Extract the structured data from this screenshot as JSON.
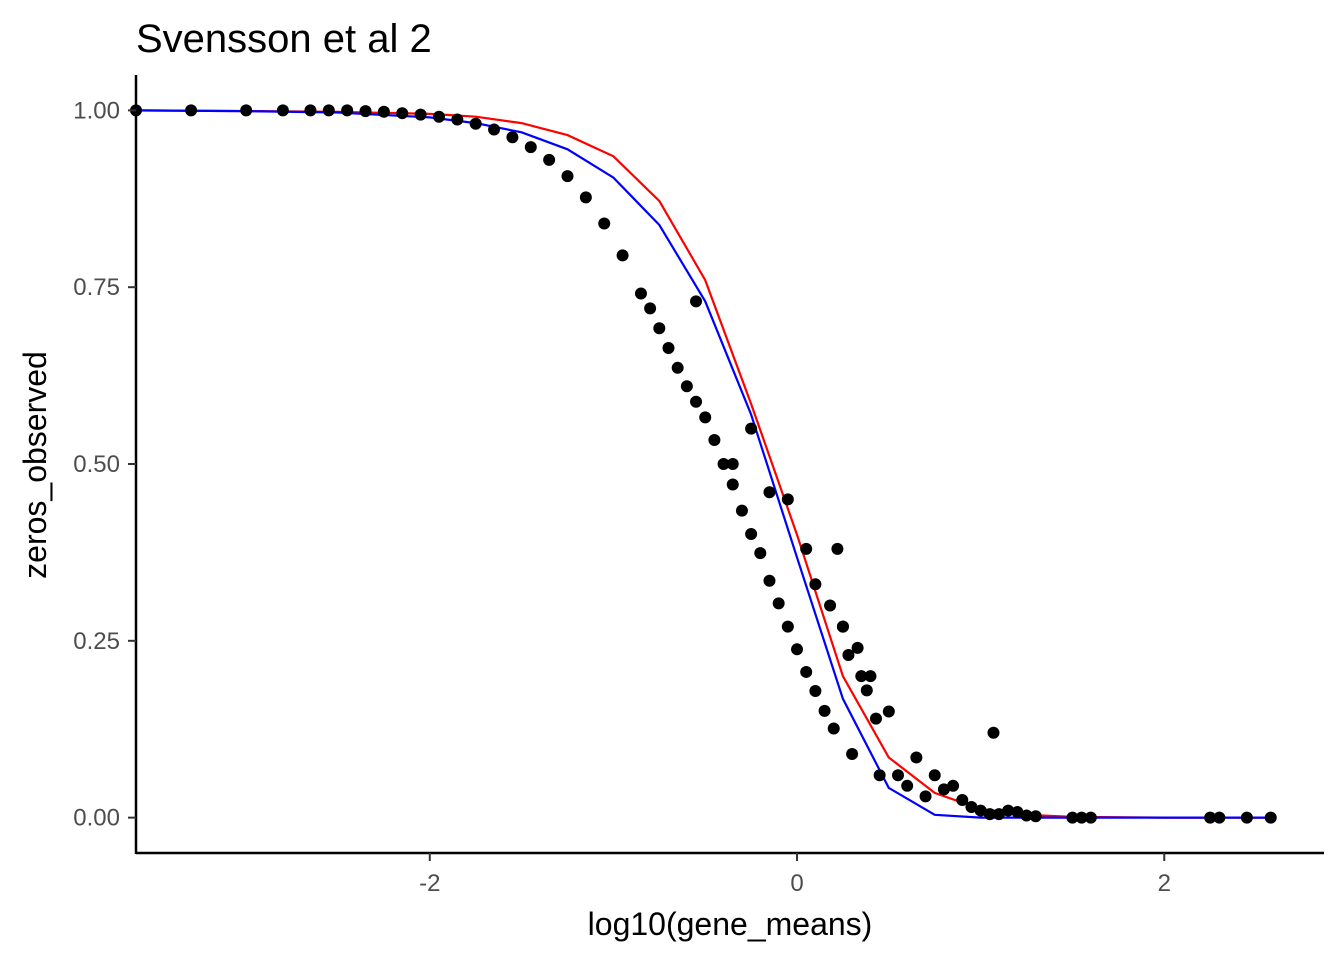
{
  "chart_data": {
    "type": "scatter",
    "title": "Svensson et al 2",
    "xlabel": "log10(gene_means)",
    "ylabel": "zeros_observed",
    "xlim": [
      -3.6,
      2.87
    ],
    "ylim": [
      -0.05,
      1.05
    ],
    "x_ticks": [
      -2,
      0,
      2
    ],
    "x_tick_labels": [
      "-2",
      "0",
      "2"
    ],
    "y_ticks": [
      0.0,
      0.25,
      0.5,
      0.75,
      1.0
    ],
    "y_tick_labels": [
      "0.00",
      "0.25",
      "0.50",
      "0.75",
      "1.00"
    ],
    "grid": false,
    "legend": "none",
    "point_color": "#000000",
    "series": [
      {
        "kind": "points",
        "color": "#000000",
        "x": [
          -3.6,
          -3.3,
          -3.0,
          -2.8,
          -2.65,
          -2.55,
          -2.45,
          -2.35,
          -2.25,
          -2.15,
          -2.05,
          -1.95,
          -1.85,
          -1.75,
          -1.65,
          -1.55,
          -1.45,
          -1.35,
          -1.25,
          -1.15,
          -1.05,
          -0.95,
          -0.85,
          -0.8,
          -0.75,
          -0.7,
          -0.65,
          -0.6,
          -0.55,
          -0.5,
          -0.45,
          -0.4,
          -0.35,
          -0.3,
          -0.25,
          -0.2,
          -0.15,
          -0.1,
          -0.05,
          0.0,
          0.05,
          0.1,
          0.15,
          0.2,
          0.22,
          0.25,
          0.28,
          0.3,
          0.33,
          0.35,
          0.38,
          0.4,
          0.43,
          0.45,
          0.5,
          0.55,
          0.6,
          0.65,
          0.7,
          0.75,
          0.8,
          0.85,
          0.9,
          0.95,
          1.0,
          1.05,
          1.07,
          1.1,
          1.15,
          1.2,
          1.25,
          1.3,
          1.5,
          1.55,
          1.6,
          2.25,
          2.3,
          2.45,
          2.58,
          -0.55,
          -0.35,
          -0.25,
          -0.15,
          -0.05,
          0.05,
          0.1,
          0.18,
          0.25
        ],
        "y": [
          1.0,
          1.0,
          1.0,
          1.0,
          1.0,
          1.0,
          1.0,
          0.999,
          0.998,
          0.996,
          0.994,
          0.991,
          0.987,
          0.981,
          0.973,
          0.962,
          0.948,
          0.93,
          0.907,
          0.877,
          0.84,
          0.795,
          0.741,
          0.72,
          0.692,
          0.664,
          0.636,
          0.61,
          0.588,
          0.566,
          0.534,
          0.5,
          0.471,
          0.434,
          0.401,
          0.374,
          0.335,
          0.303,
          0.27,
          0.238,
          0.206,
          0.179,
          0.151,
          0.126,
          0.38,
          0.27,
          0.23,
          0.09,
          0.24,
          0.2,
          0.18,
          0.2,
          0.14,
          0.06,
          0.15,
          0.06,
          0.045,
          0.085,
          0.03,
          0.06,
          0.04,
          0.045,
          0.025,
          0.015,
          0.01,
          0.005,
          0.12,
          0.005,
          0.01,
          0.008,
          0.003,
          0.002,
          0.0,
          0.0,
          0.0,
          0.0,
          0.0,
          0.0,
          0.0,
          0.73,
          0.5,
          0.55,
          0.46,
          0.45,
          0.38,
          0.33,
          0.3,
          0.27
        ]
      },
      {
        "kind": "line",
        "color": "#ff0000",
        "x": [
          -3.6,
          -3.0,
          -2.5,
          -2.0,
          -1.75,
          -1.5,
          -1.25,
          -1.0,
          -0.75,
          -0.5,
          -0.25,
          0.0,
          0.25,
          0.5,
          0.75,
          1.0,
          1.25,
          1.5,
          2.0,
          2.58
        ],
        "y": [
          1.0,
          0.999,
          0.998,
          0.995,
          0.991,
          0.982,
          0.965,
          0.935,
          0.872,
          0.76,
          0.585,
          0.4,
          0.2,
          0.085,
          0.035,
          0.012,
          0.004,
          0.001,
          0.0,
          0.0
        ]
      },
      {
        "kind": "line",
        "color": "#0000ff",
        "x": [
          -3.6,
          -3.0,
          -2.5,
          -2.0,
          -1.75,
          -1.5,
          -1.25,
          -1.0,
          -0.75,
          -0.5,
          -0.25,
          0.0,
          0.25,
          0.5,
          0.75,
          1.0,
          1.5,
          2.0,
          2.58
        ],
        "y": [
          1.0,
          0.999,
          0.997,
          0.99,
          0.982,
          0.969,
          0.945,
          0.905,
          0.838,
          0.73,
          0.57,
          0.368,
          0.168,
          0.042,
          0.004,
          0.0,
          0.0,
          0.0,
          0.0
        ]
      }
    ]
  }
}
